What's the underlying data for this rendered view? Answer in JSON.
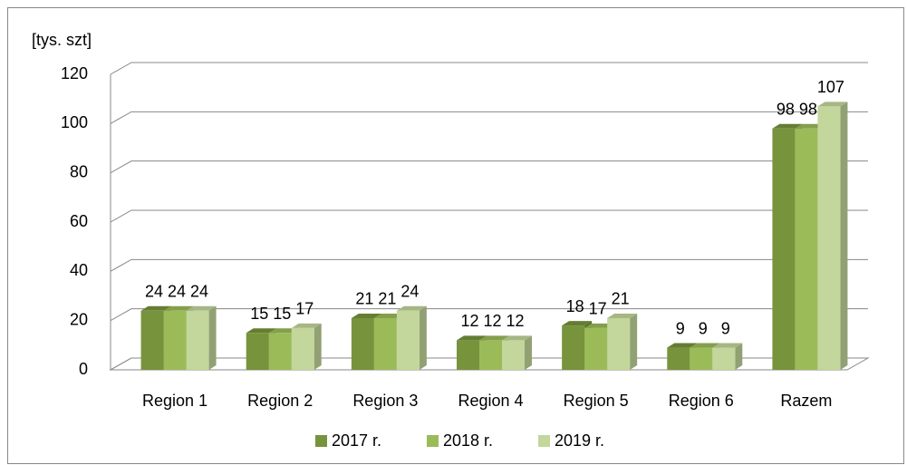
{
  "chart_data": {
    "type": "bar3d",
    "y_label": "[tys. szt]",
    "categories": [
      "Region 1",
      "Region 2",
      "Region 3",
      "Region 4",
      "Region 5",
      "Region 6",
      "Razem"
    ],
    "series": [
      {
        "name": "2017 r.",
        "color": "#77933c",
        "values": [
          24,
          15,
          21,
          12,
          18,
          9,
          98
        ]
      },
      {
        "name": "2018 r.",
        "color": "#9bbb59",
        "values": [
          24,
          15,
          21,
          12,
          17,
          9,
          98
        ]
      },
      {
        "name": "2019 r.",
        "color": "#c3d69b",
        "values": [
          24,
          17,
          24,
          12,
          21,
          9,
          107
        ]
      }
    ],
    "ylim": [
      0,
      120
    ],
    "yticks": [
      0,
      20,
      40,
      60,
      80,
      100,
      120
    ],
    "grid": true,
    "legend": "bottom"
  }
}
